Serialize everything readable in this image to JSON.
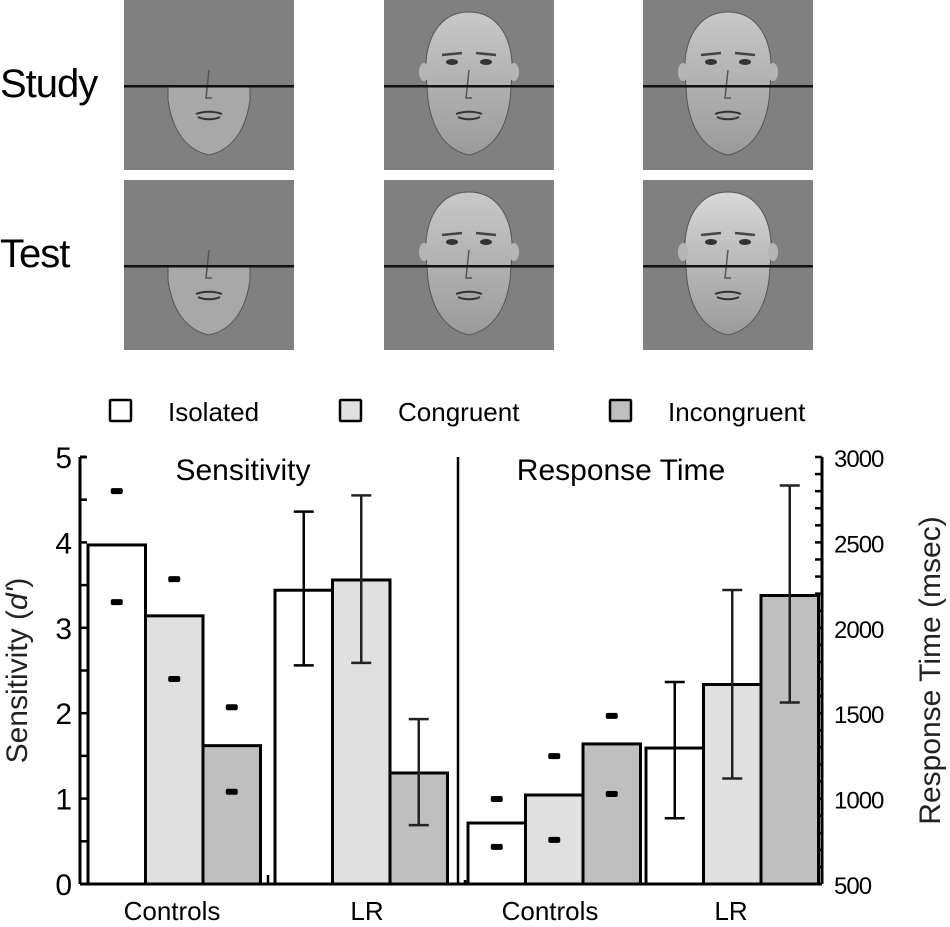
{
  "stimuli": {
    "rows": [
      {
        "label": "Study",
        "panels": [
          {
            "condition": "Isolated",
            "face": "bottom-half-only",
            "split_line": true
          },
          {
            "condition": "Congruent",
            "face": "whole-face",
            "split_line": true
          },
          {
            "condition": "Incongruent",
            "face": "whole-face",
            "split_line": true
          }
        ]
      },
      {
        "label": "Test",
        "panels": [
          {
            "condition": "Isolated",
            "face": "bottom-half-only",
            "split_line": true
          },
          {
            "condition": "Congruent",
            "face": "whole-face",
            "split_line": true
          },
          {
            "condition": "Incongruent",
            "face": "whole-face-different-top",
            "split_line": true
          }
        ]
      }
    ]
  },
  "colors": {
    "panel_bg": "#808080",
    "isolated": "#ffffff",
    "congruent": "#e0e0e0",
    "incongruent": "#bfbfbf",
    "ink": "#000000"
  },
  "chart_data": [
    {
      "type": "bar",
      "title": "Sensitivity",
      "ylabel": "Sensitivity (d')",
      "ylabel_parts": [
        "Sensitivity (",
        "d'",
        ")"
      ],
      "ylim": [
        0,
        5
      ],
      "yticks": [
        0,
        1,
        2,
        3,
        4,
        5
      ],
      "y_minor_step": 0.5,
      "y_axis_side": "left",
      "categories": [
        "Controls",
        "LR"
      ],
      "legend": {
        "entries": [
          "Isolated",
          "Congruent",
          "Incongruent"
        ],
        "placement": "top"
      },
      "series": [
        {
          "name": "Isolated",
          "values": [
            3.97,
            3.44
          ]
        },
        {
          "name": "Congruent",
          "values": [
            3.14,
            3.56
          ]
        },
        {
          "name": "Incongruent",
          "values": [
            1.62,
            1.3
          ]
        }
      ],
      "control_range_markers": [
        {
          "name": "Isolated",
          "upper": 4.6,
          "lower": 3.3
        },
        {
          "name": "Congruent",
          "upper": 3.57,
          "lower": 2.4
        },
        {
          "name": "Incongruent",
          "upper": 2.07,
          "lower": 1.08
        }
      ],
      "lr_error_bars": [
        {
          "name": "Isolated",
          "upper": 4.36,
          "lower": 2.56
        },
        {
          "name": "Congruent",
          "upper": 4.55,
          "lower": 2.59
        },
        {
          "name": "Incongruent",
          "upper": 1.93,
          "lower": 0.69
        }
      ]
    },
    {
      "type": "bar",
      "title": "Response Time",
      "ylabel": "Response Time (msec)",
      "ylim": [
        500,
        3000
      ],
      "yticks": [
        500,
        1000,
        1500,
        2000,
        2500,
        3000
      ],
      "y_minor_step": 100,
      "y_axis_side": "right",
      "categories": [
        "Controls",
        "LR"
      ],
      "series": [
        {
          "name": "Isolated",
          "values": [
            857,
            1296
          ]
        },
        {
          "name": "Congruent",
          "values": [
            1021,
            1668
          ]
        },
        {
          "name": "Incongruent",
          "values": [
            1320,
            2189
          ]
        }
      ],
      "control_range_markers": [
        {
          "name": "Isolated",
          "upper": 998,
          "lower": 717
        },
        {
          "name": "Congruent",
          "upper": 1249,
          "lower": 758
        },
        {
          "name": "Incongruent",
          "upper": 1484,
          "lower": 1027
        }
      ],
      "lr_error_bars": [
        {
          "name": "Isolated",
          "upper": 1683,
          "lower": 885
        },
        {
          "name": "Congruent",
          "upper": 2221,
          "lower": 1118
        },
        {
          "name": "Incongruent",
          "upper": 2833,
          "lower": 1563
        }
      ]
    }
  ]
}
